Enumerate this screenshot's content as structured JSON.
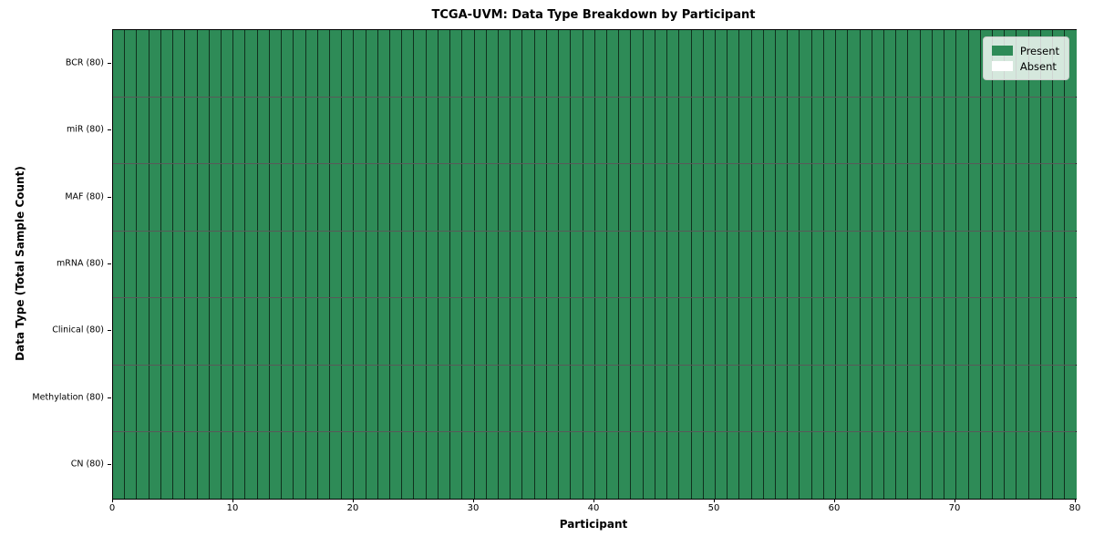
{
  "chart_data": {
    "type": "heatmap",
    "title": "TCGA-UVM: Data Type Breakdown by Participant",
    "xlabel": "Participant",
    "ylabel": "Data Type (Total Sample Count)",
    "x_range": [
      0,
      80
    ],
    "x_ticks": [
      0,
      10,
      20,
      30,
      40,
      50,
      60,
      70,
      80
    ],
    "n_participants": 80,
    "grid_on": false,
    "all_cells_present": true,
    "rows": [
      {
        "label": "BCR (80)",
        "total": 80,
        "present": 80,
        "absent": 0
      },
      {
        "label": "miR (80)",
        "total": 80,
        "present": 80,
        "absent": 0
      },
      {
        "label": "MAF (80)",
        "total": 80,
        "present": 80,
        "absent": 0
      },
      {
        "label": "mRNA (80)",
        "total": 80,
        "present": 80,
        "absent": 0
      },
      {
        "label": "Clinical (80)",
        "total": 80,
        "present": 80,
        "absent": 0
      },
      {
        "label": "Methylation (80)",
        "total": 80,
        "present": 80,
        "absent": 0
      },
      {
        "label": "CN (80)",
        "total": 80,
        "present": 80,
        "absent": 0
      }
    ],
    "legend": {
      "position": "upper right",
      "entries": [
        {
          "label": "Present",
          "color": "#2e8b57"
        },
        {
          "label": "Absent",
          "color": "#ffffff"
        }
      ]
    },
    "colors": {
      "present": "#2e8b57",
      "absent": "#ffffff",
      "cell_border": "rgba(0,0,0,0.65)",
      "axis": "#000000",
      "background": "#ffffff"
    }
  }
}
